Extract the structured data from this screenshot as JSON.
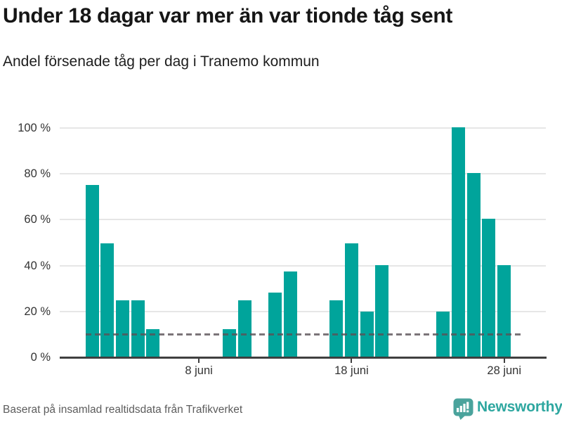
{
  "header": {
    "title": "Under 18 dagar var mer än var tionde tåg sent",
    "subtitle": "Andel försenade tåg per dag i Tranemo kommun"
  },
  "footer": {
    "source": "Baserat på insamlad realtidsdata från Trafikverket",
    "brand": "Newsworthy"
  },
  "colors": {
    "bar": "#00a49b",
    "gridline": "#e6e6e6",
    "axis": "#3f3f3f",
    "reference_line": "#5a5257",
    "brand_teal": "#2ea7a0",
    "brand_icon_teal": "#4aa39c"
  },
  "icons": {
    "logo": "newsworthy-speech-bubble-barchart-icon"
  },
  "chart_data": {
    "type": "bar",
    "title": "Under 18 dagar var mer än var tionde tåg sent",
    "subtitle": "Andel försenade tåg per dag i Tranemo kommun",
    "x_unit": "dag i juni",
    "month_label": "juni",
    "categories": [
      1,
      2,
      3,
      4,
      5,
      6,
      7,
      8,
      9,
      10,
      11,
      12,
      13,
      14,
      15,
      16,
      17,
      18,
      19,
      20,
      21,
      22,
      23,
      24,
      25,
      26,
      27,
      28,
      29,
      30
    ],
    "values": [
      75,
      49.5,
      24.5,
      24.5,
      12,
      0,
      0,
      0,
      0,
      12,
      24.5,
      0,
      28,
      37,
      0,
      0,
      24.5,
      49.5,
      19.5,
      40,
      0,
      0,
      0,
      19.5,
      100,
      80,
      60,
      40,
      0,
      0
    ],
    "series_name": "Andel försenade tåg",
    "ylim": [
      0,
      100
    ],
    "yticks": [
      {
        "value": 0,
        "label": "0 %"
      },
      {
        "value": 20,
        "label": "20 %"
      },
      {
        "value": 40,
        "label": "40 %"
      },
      {
        "value": 60,
        "label": "60 %"
      },
      {
        "value": 80,
        "label": "80 %"
      },
      {
        "value": 100,
        "label": "100 %"
      }
    ],
    "xticks": [
      {
        "day": 8,
        "label": "8 juni"
      },
      {
        "day": 18,
        "label": "18 juni"
      },
      {
        "day": 28,
        "label": "28 juni"
      }
    ],
    "grid": true,
    "legend": "none",
    "reference_line": {
      "value": 10,
      "style": "dashed",
      "meaning": "var tionde tåg (10 %)"
    }
  }
}
